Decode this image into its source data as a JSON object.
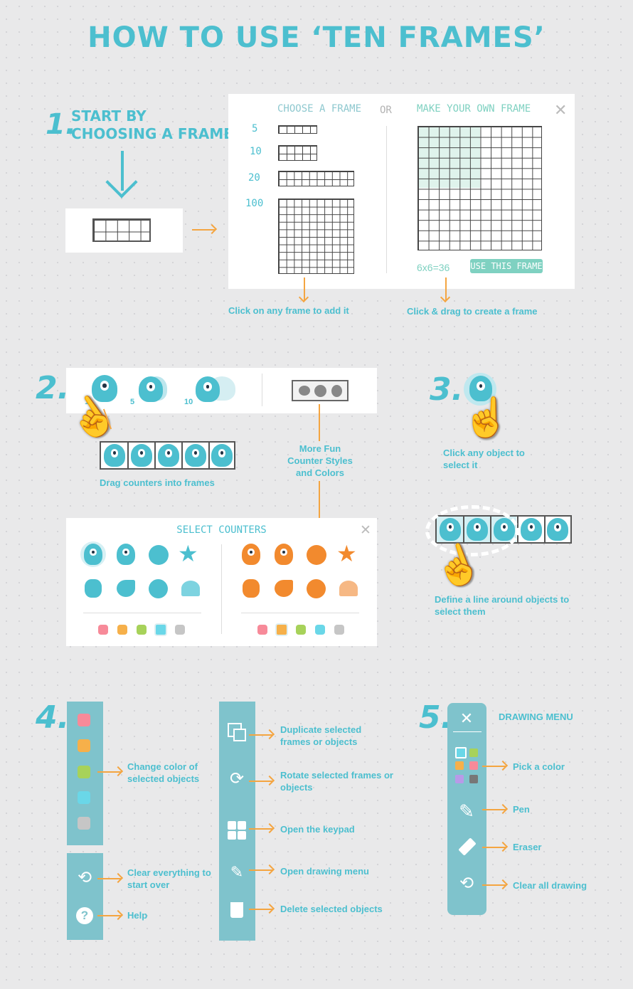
{
  "title": "HOW TO USE ‘TEN FRAMES’",
  "step1": {
    "number": "1.",
    "line1": "START BY",
    "line2": "CHOOSING A FRAME",
    "choose_header": "CHOOSE A FRAME",
    "or": "OR",
    "make_header": "MAKE YOUR OWN FRAME",
    "frame_sizes": [
      "5",
      "10",
      "20",
      "100"
    ],
    "equation": "6x6=36",
    "use_button": "USE THIS FRAME",
    "caption_left": "Click on any frame to add it",
    "caption_right": "Click & drag to create a frame"
  },
  "step2": {
    "number": "2.",
    "stack_counts": [
      "1",
      "5",
      "10"
    ],
    "drag_caption": "Drag counters into frames",
    "more_caption": "More Fun Counter Styles and Colors",
    "select_header": "SELECT COUNTERS"
  },
  "step3": {
    "number": "3.",
    "click_caption": "Click any object to select it",
    "lasso_caption": "Define a line around objects to select them"
  },
  "step4": {
    "number": "4.",
    "color_label": "Change color of selected objects",
    "clear_label": "Clear everything to start over",
    "help_label": "Help",
    "duplicate_label": "Duplicate selected frames or objects",
    "rotate_label": "Rotate selected frames or objects",
    "keypad_label": "Open the keypad",
    "drawing_label": "Open drawing menu",
    "delete_label": "Delete selected objects"
  },
  "step5": {
    "number": "5.",
    "header": "DRAWING MENU",
    "pick_label": "Pick a color",
    "pen_label": "Pen",
    "eraser_label": "Eraser",
    "clear_label": "Clear all drawing"
  },
  "colors": {
    "teal": "#4cbfcf",
    "orange": "#f4a541",
    "pink": "#f78a99",
    "yellow": "#f6b04a",
    "green": "#a7d25a",
    "cyan": "#6ad7e8",
    "gray": "#c6c6c6",
    "purple": "#b89ae8",
    "dark_gray": "#777777"
  }
}
